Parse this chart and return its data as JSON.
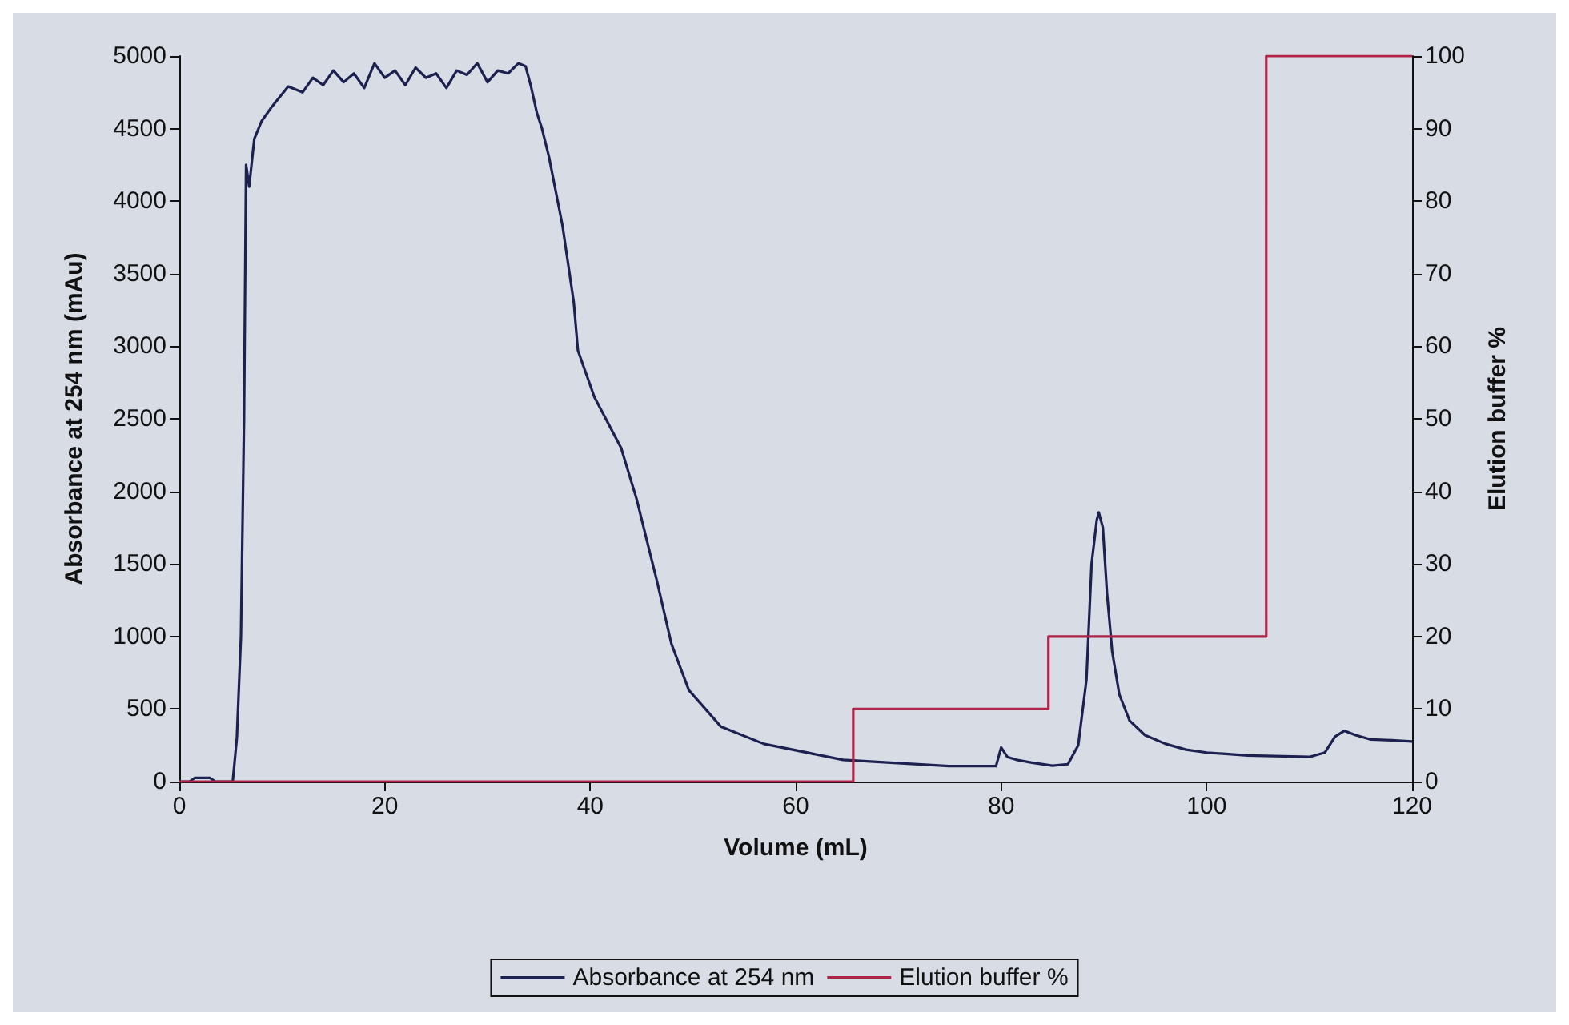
{
  "chart_data": {
    "type": "line",
    "xlabel": "Volume (mL)",
    "ylabel": "Absorbance at 254 nm (mAu)",
    "y2label": "Elution buffer %",
    "series": [
      {
        "name": "Absorbance at 254 nm",
        "color": "#1c2150",
        "x": [
          0,
          1,
          1.5,
          3,
          3.5,
          5.2,
          5.6,
          6,
          6.3,
          6.5,
          6.8,
          7.3,
          8,
          9,
          10.6,
          12,
          13,
          14,
          15,
          16,
          17,
          18,
          19,
          20,
          21,
          22,
          23,
          24,
          25,
          26,
          27,
          28,
          29,
          30,
          31,
          32,
          33,
          33.7,
          34.2,
          34.8,
          35.3,
          36,
          37.3,
          38.4,
          38.8,
          40.4,
          43,
          44.5,
          46.5,
          47.9,
          49.6,
          52.7,
          56.9,
          64.6,
          74.9,
          79.5,
          80,
          80.6,
          81.5,
          83,
          85,
          86.5,
          87.5,
          88.3,
          88.8,
          89.3,
          89.5,
          89.9,
          90.3,
          90.8,
          91.5,
          92.5,
          94,
          96,
          98,
          100,
          104,
          110,
          111.5,
          112.5,
          113.4,
          114.5,
          116,
          118,
          120
        ],
        "values": [
          0,
          0,
          25,
          25,
          0,
          0,
          300,
          1000,
          2500,
          4250,
          4100,
          4430,
          4550,
          4650,
          4790,
          4750,
          4850,
          4800,
          4900,
          4820,
          4880,
          4780,
          4950,
          4850,
          4900,
          4800,
          4920,
          4850,
          4880,
          4780,
          4900,
          4870,
          4950,
          4820,
          4900,
          4880,
          4950,
          4930,
          4800,
          4610,
          4500,
          4300,
          3830,
          3300,
          2970,
          2650,
          2300,
          1950,
          1380,
          950,
          630,
          380,
          260,
          150,
          107,
          107,
          235,
          170,
          150,
          130,
          110,
          120,
          250,
          700,
          1500,
          1800,
          1855,
          1750,
          1300,
          900,
          600,
          420,
          320,
          260,
          220,
          200,
          180,
          170,
          200,
          310,
          350,
          320,
          290,
          285,
          277
        ]
      },
      {
        "name": "Elution buffer %",
        "color": "#b0244a",
        "axis": "y2",
        "x": [
          0,
          65.6,
          65.6,
          84.6,
          84.6,
          105.8,
          105.8,
          120
        ],
        "values": [
          0,
          0,
          10,
          10,
          20,
          20,
          100,
          100
        ]
      }
    ],
    "xlim": [
      0,
      120
    ],
    "xticks": [
      0,
      20,
      40,
      60,
      80,
      100,
      120
    ],
    "ylim": [
      0,
      5000
    ],
    "yticks": [
      0,
      500,
      1000,
      1500,
      2000,
      2500,
      3000,
      3500,
      4000,
      4500,
      5000
    ],
    "y2lim": [
      0,
      100
    ],
    "y2ticks": [
      0,
      10,
      20,
      30,
      40,
      50,
      60,
      70,
      80,
      90,
      100
    ],
    "grid": false,
    "legend": "bottom",
    "marker": "none",
    "line_style": "solid"
  }
}
